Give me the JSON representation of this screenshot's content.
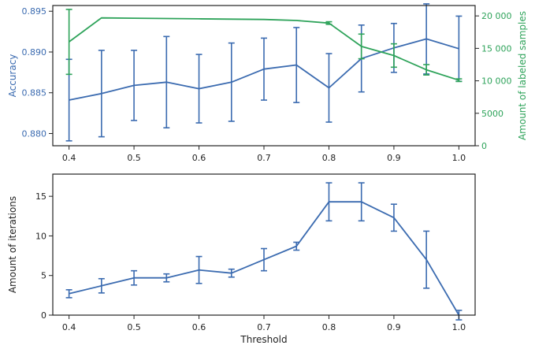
{
  "chart_data": [
    {
      "type": "line",
      "x": [
        0.4,
        0.45,
        0.5,
        0.55,
        0.6,
        0.65,
        0.7,
        0.75,
        0.8,
        0.85,
        0.9,
        0.95,
        1.0
      ],
      "xlim": [
        0.375,
        1.025
      ],
      "xticks": [
        "0.4",
        "0.5",
        "0.6",
        "0.7",
        "0.8",
        "0.9",
        "1.0"
      ],
      "xlabel": "",
      "grid": false,
      "series": [
        {
          "name": "Accuracy",
          "axis": "left",
          "color": "#3b6bb0",
          "values": [
            0.8841,
            0.8849,
            0.8859,
            0.8863,
            0.8855,
            0.8863,
            0.8879,
            0.8884,
            0.8856,
            0.8892,
            0.8905,
            0.8916,
            0.8904
          ],
          "errors": [
            0.005,
            0.0053,
            0.0043,
            0.0056,
            0.0042,
            0.0048,
            0.0038,
            0.0046,
            0.0042,
            0.0041,
            0.003,
            0.0043,
            0.004
          ]
        },
        {
          "name": "Amount of labeled samples",
          "axis": "right",
          "color": "#2ea35a",
          "values": [
            16000,
            19700,
            19650,
            19600,
            19550,
            19500,
            19450,
            19300,
            18900,
            15300,
            13900,
            11700,
            10100
          ],
          "errors": [
            5000,
            0,
            0,
            0,
            0,
            0,
            0,
            0,
            200,
            1900,
            1800,
            800,
            200
          ]
        }
      ],
      "ylabel": "Accuracy",
      "ylim": [
        0.8785,
        0.8957
      ],
      "yticks": [
        "0.880",
        "0.885",
        "0.890",
        "0.895"
      ],
      "y2label": "Amount of labeled samples",
      "y2lim": [
        0,
        21600
      ],
      "y2ticks": [
        "0",
        "5000",
        "10 000",
        "15 000",
        "20 000"
      ]
    },
    {
      "type": "line",
      "x": [
        0.4,
        0.45,
        0.5,
        0.55,
        0.6,
        0.65,
        0.7,
        0.75,
        0.8,
        0.85,
        0.9,
        0.95,
        1.0
      ],
      "xlim": [
        0.375,
        1.025
      ],
      "xticks": [
        "0.4",
        "0.5",
        "0.6",
        "0.7",
        "0.8",
        "0.9",
        "1.0"
      ],
      "xlabel": "Threshold",
      "ylabel": "Amount of iterations",
      "ylim": [
        0,
        17.8
      ],
      "yticks": [
        "0",
        "5",
        "10",
        "15"
      ],
      "grid": false,
      "series": [
        {
          "name": "",
          "color": "#3b6bb0",
          "values": [
            2.7,
            3.7,
            4.7,
            4.7,
            5.7,
            5.3,
            7.0,
            8.7,
            14.3,
            14.3,
            12.3,
            7.0,
            0.0
          ],
          "errors": [
            0.5,
            0.9,
            0.9,
            0.5,
            1.7,
            0.5,
            1.4,
            0.5,
            2.4,
            2.4,
            1.7,
            3.6,
            0.6
          ]
        }
      ]
    }
  ]
}
